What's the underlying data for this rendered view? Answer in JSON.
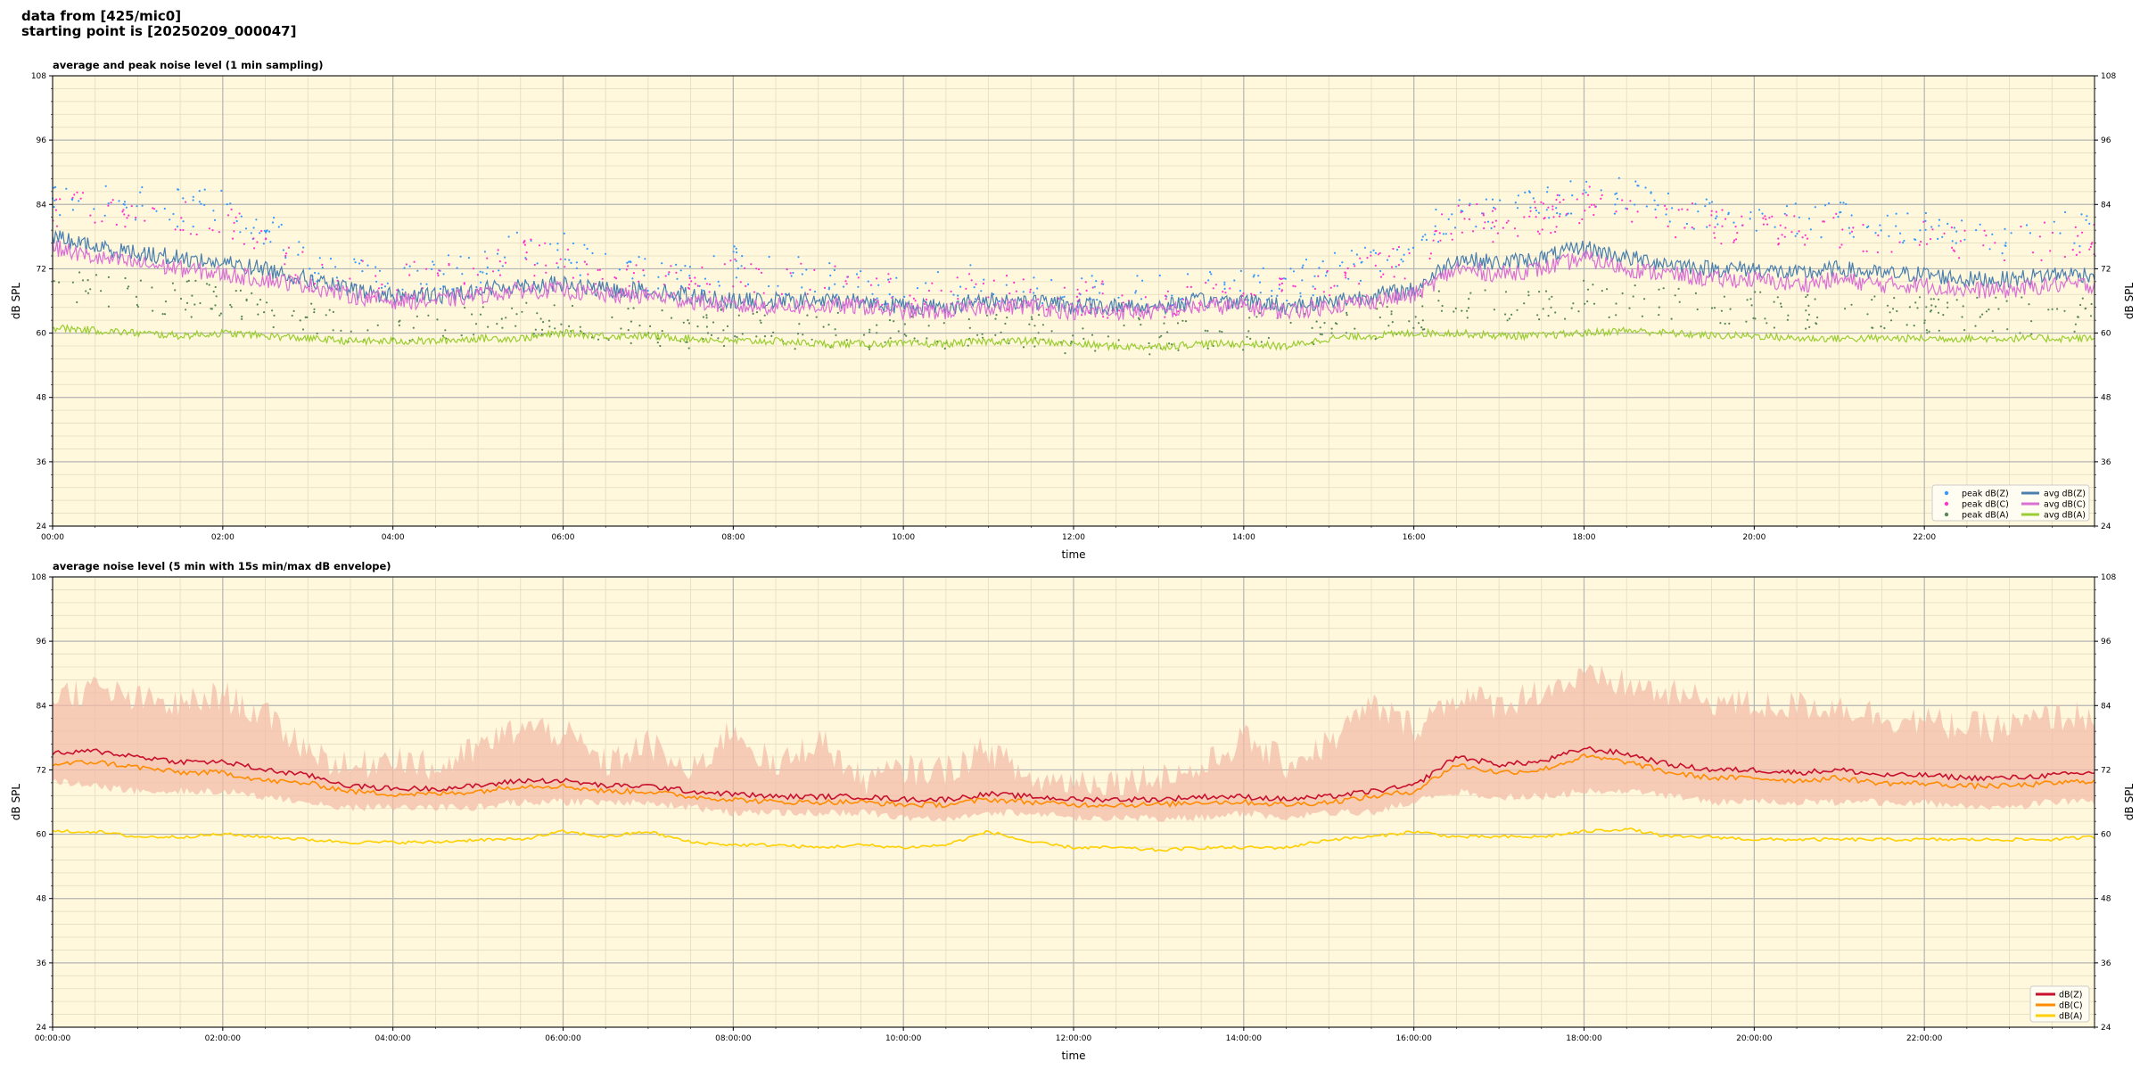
{
  "header": {
    "line1": "data from [425/mic0]",
    "line2": "starting point is [20250209_000047]"
  },
  "colors": {
    "background": "#fff8dc",
    "grid_major": "#b4b4b4",
    "grid_minor": "#e5dcc0",
    "peak_z": "#3399ff",
    "peak_c": "#ff33cc",
    "peak_a": "#558855",
    "avg_z": "#4a7fb0",
    "avg_c": "#da70d6",
    "avg_a": "#9acd32",
    "z": "#c8102e",
    "c": "#ff8c00",
    "a": "#ffd000",
    "envelope": "#f4b9a5"
  },
  "chart_data": [
    {
      "type": "line",
      "title": "average and peak noise level (1 min sampling)",
      "xlabel": "time",
      "ylabel": "dB SPL",
      "ylabel_right": "dB SPL",
      "xlim": [
        0,
        24
      ],
      "ylim": [
        24,
        108
      ],
      "yticks": [
        24,
        36,
        48,
        60,
        72,
        84,
        96,
        108
      ],
      "xticks": [
        0,
        2,
        4,
        6,
        8,
        10,
        12,
        14,
        16,
        18,
        20,
        22
      ],
      "xtick_labels": [
        "00:00",
        "02:00",
        "04:00",
        "06:00",
        "08:00",
        "10:00",
        "12:00",
        "14:00",
        "16:00",
        "18:00",
        "20:00",
        "22:00"
      ],
      "grid": true,
      "legend_position": "bottom-right",
      "x": [
        0,
        0.5,
        1,
        1.5,
        2,
        2.5,
        3,
        3.5,
        4,
        4.5,
        5,
        5.5,
        6,
        6.5,
        7,
        7.5,
        8,
        8.5,
        9,
        9.5,
        10,
        10.5,
        11,
        11.5,
        12,
        12.5,
        13,
        13.5,
        14,
        14.5,
        15,
        15.5,
        16,
        16.5,
        17,
        17.5,
        18,
        18.5,
        19,
        19.5,
        20,
        20.5,
        21,
        21.5,
        22,
        22.5,
        23,
        23.5,
        24
      ],
      "series": [
        {
          "name": "peak dB(Z)",
          "kind": "scatter",
          "color_key": "peak_z",
          "values": [
            86,
            86,
            85,
            84,
            84,
            80,
            74,
            73,
            71,
            72,
            72,
            77,
            76,
            72,
            72,
            70,
            74,
            71,
            72,
            70,
            69,
            70,
            70,
            69,
            68,
            68,
            68,
            69,
            70,
            70,
            72,
            74,
            77,
            84,
            83,
            84,
            87,
            86,
            84,
            83,
            82,
            82,
            82,
            80,
            80,
            79,
            79,
            80,
            80
          ]
        },
        {
          "name": "peak dB(C)",
          "kind": "scatter",
          "color_key": "peak_c",
          "values": [
            84,
            84,
            83,
            82,
            82,
            78,
            72,
            71,
            70,
            71,
            71,
            75,
            74,
            71,
            71,
            69,
            72,
            70,
            71,
            69,
            68,
            69,
            69,
            68,
            67,
            67,
            67,
            68,
            69,
            69,
            71,
            72,
            75,
            82,
            81,
            82,
            85,
            84,
            82,
            81,
            80,
            80,
            80,
            78,
            78,
            77,
            77,
            78,
            78
          ]
        },
        {
          "name": "peak dB(A)",
          "kind": "scatter",
          "color_key": "peak_a",
          "values": [
            70,
            69,
            68,
            67,
            67,
            65,
            63,
            62,
            62,
            62,
            62,
            63,
            63,
            62,
            62,
            61,
            62,
            61,
            61,
            61,
            61,
            61,
            61,
            61,
            60,
            60,
            60,
            60,
            61,
            61,
            62,
            63,
            64,
            67,
            66,
            66,
            67,
            67,
            66,
            65,
            65,
            65,
            65,
            64,
            64,
            64,
            64,
            64,
            64
          ]
        },
        {
          "name": "avg dB(Z)",
          "kind": "line",
          "color_key": "avg_z",
          "values": [
            78,
            76,
            75,
            74,
            73,
            72,
            70,
            68,
            67,
            67,
            68,
            69,
            69,
            68,
            68,
            67,
            66,
            66,
            66,
            66,
            65,
            65,
            66,
            66,
            65,
            65,
            65,
            66,
            66,
            65,
            66,
            67,
            68,
            74,
            73,
            74,
            76,
            74,
            73,
            72,
            72,
            71,
            72,
            71,
            71,
            70,
            70,
            71,
            71
          ]
        },
        {
          "name": "avg dB(C)",
          "kind": "line",
          "color_key": "avg_c",
          "values": [
            76,
            74,
            73,
            72,
            71,
            70,
            69,
            67,
            66,
            66,
            67,
            68,
            68,
            67,
            67,
            66,
            65,
            65,
            65,
            65,
            64,
            64,
            65,
            65,
            64,
            64,
            64,
            65,
            65,
            64,
            65,
            66,
            67,
            72,
            71,
            72,
            74,
            72,
            71,
            70,
            70,
            69,
            70,
            69,
            69,
            68,
            68,
            69,
            69
          ]
        },
        {
          "name": "avg dB(A)",
          "kind": "line",
          "color_key": "avg_a",
          "values": [
            61,
            60.5,
            60,
            59.5,
            60,
            59.5,
            59,
            58.5,
            58.5,
            58.5,
            59,
            59,
            60,
            59.5,
            59.5,
            59,
            58.5,
            58.5,
            58,
            58,
            58,
            58,
            58.5,
            58.5,
            58,
            57.5,
            57.5,
            58,
            58,
            57.5,
            59,
            59.5,
            60,
            60,
            59.5,
            59.5,
            60,
            60.5,
            60,
            59.5,
            59.5,
            59,
            59,
            59,
            59,
            59,
            59,
            59,
            59
          ]
        }
      ]
    },
    {
      "type": "line",
      "title": "average noise level (5 min with 15s min/max dB envelope)",
      "xlabel": "time",
      "ylabel": "dB SPL",
      "ylabel_right": "dB SPL",
      "xlim": [
        0,
        24
      ],
      "ylim": [
        24,
        108
      ],
      "yticks": [
        24,
        36,
        48,
        60,
        72,
        84,
        96,
        108
      ],
      "xticks": [
        0,
        2,
        4,
        6,
        8,
        10,
        12,
        14,
        16,
        18,
        20,
        22
      ],
      "xtick_labels": [
        "00:00:00",
        "02:00:00",
        "04:00:00",
        "06:00:00",
        "08:00:00",
        "10:00:00",
        "12:00:00",
        "14:00:00",
        "16:00:00",
        "18:00:00",
        "20:00:00",
        "22:00:00"
      ],
      "grid": true,
      "legend_position": "bottom-right",
      "x": [
        0,
        0.5,
        1,
        1.5,
        2,
        2.5,
        3,
        3.5,
        4,
        4.5,
        5,
        5.5,
        6,
        6.5,
        7,
        7.5,
        8,
        8.5,
        9,
        9.5,
        10,
        10.5,
        11,
        11.5,
        12,
        12.5,
        13,
        13.5,
        14,
        14.5,
        15,
        15.5,
        16,
        16.5,
        17,
        17.5,
        18,
        18.5,
        19,
        19.5,
        20,
        20.5,
        21,
        21.5,
        22,
        22.5,
        23,
        23.5,
        24
      ],
      "envelope": {
        "min": [
          70,
          69,
          68,
          68,
          68,
          67,
          66,
          65,
          65,
          65,
          65,
          66,
          66,
          66,
          66,
          65,
          64,
          64,
          64,
          64,
          63,
          63,
          64,
          64,
          63,
          63,
          63,
          63,
          64,
          63,
          64,
          64,
          66,
          68,
          67,
          67,
          68,
          68,
          67,
          66,
          66,
          66,
          66,
          66,
          66,
          65,
          65,
          66,
          66
        ],
        "max": [
          86,
          87,
          85,
          84,
          86,
          82,
          76,
          72,
          75,
          72,
          76,
          80,
          79,
          73,
          77,
          71,
          80,
          72,
          78,
          70,
          72,
          72,
          76,
          70,
          70,
          70,
          71,
          72,
          78,
          73,
          77,
          84,
          80,
          86,
          84,
          87,
          89,
          88,
          86,
          85,
          84,
          84,
          84,
          82,
          81,
          80,
          80,
          82,
          82
        ]
      },
      "series": [
        {
          "name": "dB(Z)",
          "color_key": "z",
          "values": [
            75,
            75.5,
            74.5,
            73.5,
            73.5,
            72,
            71,
            69,
            68.5,
            68.5,
            69,
            70,
            70,
            69,
            69,
            68,
            67.5,
            67,
            67,
            67,
            66.5,
            66.5,
            67.5,
            67,
            66.5,
            66.5,
            66.5,
            67,
            67,
            66.5,
            67,
            68,
            69,
            74.5,
            73,
            73.5,
            76,
            75,
            73,
            72,
            72,
            71.5,
            72,
            71,
            71,
            70.5,
            70.5,
            71,
            71.5
          ]
        },
        {
          "name": "dB(C)",
          "color_key": "c",
          "values": [
            73,
            73.5,
            72.5,
            71.5,
            71.5,
            70,
            69.5,
            68,
            67.5,
            67.5,
            68,
            69,
            69,
            68,
            68,
            67,
            66.5,
            66,
            66,
            66,
            65.5,
            65.5,
            66.5,
            66,
            65.5,
            65.5,
            65.5,
            66,
            66,
            65.5,
            66,
            67,
            68,
            73,
            71.5,
            72,
            74.5,
            73.5,
            71.5,
            70.5,
            70.5,
            70,
            70.5,
            69.5,
            69.5,
            69,
            69,
            69.5,
            70
          ]
        },
        {
          "name": "dB(A)",
          "color_key": "a",
          "values": [
            60.5,
            60.5,
            59.5,
            59.5,
            60,
            59.5,
            59,
            58.5,
            58.5,
            58.5,
            59,
            59,
            60.5,
            59.5,
            60.5,
            58.5,
            58,
            58,
            57.5,
            58,
            57.5,
            58,
            60.5,
            58.5,
            57.5,
            57.5,
            57,
            57.5,
            57.5,
            57.5,
            59,
            59.5,
            60.5,
            59.5,
            59.5,
            59.5,
            60.5,
            61,
            59.5,
            59.5,
            59,
            59,
            59,
            59,
            59,
            59,
            59,
            59,
            59.5
          ]
        }
      ]
    }
  ]
}
